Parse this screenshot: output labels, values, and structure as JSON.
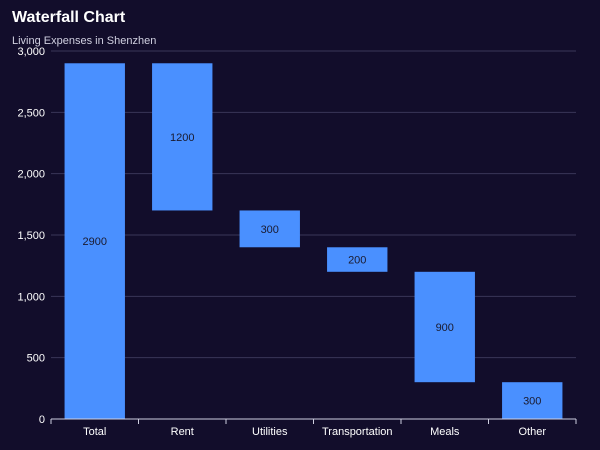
{
  "chart_data": {
    "type": "bar",
    "subtype": "waterfall",
    "title": "Waterfall Chart",
    "subtitle": "Living Expenses in Shenzhen",
    "xlabel": "",
    "ylabel": "",
    "ylim": [
      0,
      3000
    ],
    "yticks": [
      0,
      500,
      1000,
      1500,
      2000,
      2500,
      3000
    ],
    "ytick_labels": [
      "0",
      "500",
      "1,000",
      "1,500",
      "2,000",
      "2,500",
      "3,000"
    ],
    "categories": [
      "Total",
      "Rent",
      "Utilities",
      "Transportation",
      "Meals",
      "Other"
    ],
    "values": [
      2900,
      1200,
      300,
      200,
      900,
      300
    ],
    "bar_ranges": [
      [
        0,
        2900
      ],
      [
        1700,
        2900
      ],
      [
        1400,
        1700
      ],
      [
        1200,
        1400
      ],
      [
        300,
        1200
      ],
      [
        0,
        300
      ]
    ],
    "data_labels": [
      "2900",
      "1200",
      "300",
      "200",
      "900",
      "300"
    ],
    "grid": true,
    "legend": "none",
    "colors": {
      "background": "#120d2b",
      "bar": "#4a90ff",
      "grid": "#3a3658",
      "axis": "#cfcfe0",
      "label": "#1a1a2e",
      "text": "#ffffff"
    }
  }
}
